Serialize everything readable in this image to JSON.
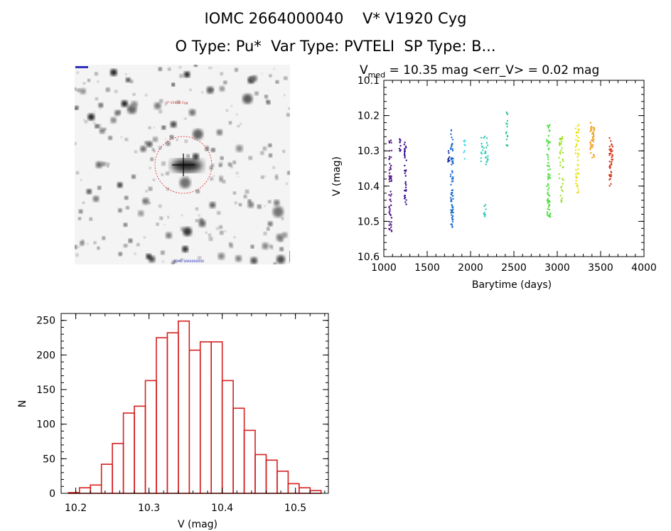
{
  "header": {
    "line1": "IOMC 2664000040    V* V1920 Cyg",
    "line2": "O Type: Pu*  Var Type: PVTELI  SP Type: B..."
  },
  "image_panel": {
    "label_top": "V* V1920 Cyg",
    "label_bottom": "IOMC 2664000040"
  },
  "chart_data": [
    {
      "type": "scatter",
      "title": "V_med = 10.35 mag <err_V> = 0.02 mag",
      "title_parts": {
        "v": "V",
        "sub": "med",
        "rest": " = 10.35 mag <err_V> = 0.02 mag"
      },
      "xlabel": "Barytime (days)",
      "ylabel": "V (mag)",
      "xlim": [
        1000,
        4000
      ],
      "ylim": [
        10.6,
        10.1
      ],
      "y_inverted": true,
      "xticks": [
        1000,
        1500,
        2000,
        2500,
        3000,
        3500,
        4000
      ],
      "yticks": [
        10.1,
        10.2,
        10.3,
        10.4,
        10.5,
        10.6
      ],
      "series": [
        {
          "name": "s1",
          "color": "#5a1a8a",
          "x_range": [
            1060,
            1090
          ],
          "y_range": [
            10.27,
            10.53
          ],
          "n": 60
        },
        {
          "name": "s2",
          "color": "#3a1090",
          "x_range": [
            1180,
            1200
          ],
          "y_range": [
            10.26,
            10.32
          ],
          "n": 10
        },
        {
          "name": "s3",
          "color": "#3a1090",
          "x_range": [
            1235,
            1260
          ],
          "y_range": [
            10.26,
            10.46
          ],
          "n": 35
        },
        {
          "name": "s4",
          "color": "#1a2a9a",
          "x_range": [
            1740,
            1760
          ],
          "y_range": [
            10.3,
            10.34
          ],
          "n": 8
        },
        {
          "name": "s5",
          "color": "#1e6ed0",
          "x_range": [
            1770,
            1800
          ],
          "y_range": [
            10.23,
            10.52
          ],
          "n": 80
        },
        {
          "name": "s6",
          "color": "#40d8e8",
          "x_range": [
            1920,
            1940
          ],
          "y_range": [
            10.27,
            10.33
          ],
          "n": 8
        },
        {
          "name": "s7",
          "color": "#30c8b8",
          "x_range": [
            2120,
            2200
          ],
          "y_range": [
            10.25,
            10.34
          ],
          "n": 28
        },
        {
          "name": "s8",
          "color": "#30c8b8",
          "x_range": [
            2150,
            2180
          ],
          "y_range": [
            10.45,
            10.49
          ],
          "n": 8
        },
        {
          "name": "s9",
          "color": "#30c890",
          "x_range": [
            2410,
            2430
          ],
          "y_range": [
            10.19,
            10.29
          ],
          "n": 15
        },
        {
          "name": "s10",
          "color": "#50e040",
          "x_range": [
            2880,
            2920
          ],
          "y_range": [
            10.22,
            10.51
          ],
          "n": 70
        },
        {
          "name": "s11",
          "color": "#a0e020",
          "x_range": [
            3020,
            3070
          ],
          "y_range": [
            10.25,
            10.45
          ],
          "n": 40
        },
        {
          "name": "s12",
          "color": "#e8e010",
          "x_range": [
            3210,
            3250
          ],
          "y_range": [
            10.22,
            10.43
          ],
          "n": 45
        },
        {
          "name": "s13",
          "color": "#f0a020",
          "x_range": [
            3380,
            3430
          ],
          "y_range": [
            10.22,
            10.32
          ],
          "n": 40
        },
        {
          "name": "s14",
          "color": "#d83818",
          "x_range": [
            3600,
            3640
          ],
          "y_range": [
            10.26,
            10.4
          ],
          "n": 40
        }
      ]
    },
    {
      "type": "histogram",
      "xlabel": "V (mag)",
      "ylabel": "N",
      "xlim": [
        10.18,
        10.545
      ],
      "ylim": [
        0,
        260
      ],
      "xticks": [
        10.2,
        10.3,
        10.4,
        10.5
      ],
      "xtick_labels": [
        "10.2",
        "10.3",
        "10.4",
        "10.5"
      ],
      "yticks": [
        0,
        50,
        100,
        150,
        200,
        250
      ],
      "bin_width": 0.015,
      "bin_start": 10.19,
      "values": [
        1,
        8,
        12,
        42,
        72,
        116,
        126,
        163,
        225,
        232,
        249,
        207,
        219,
        219,
        163,
        123,
        91,
        56,
        48,
        32,
        14,
        8,
        4
      ]
    }
  ]
}
